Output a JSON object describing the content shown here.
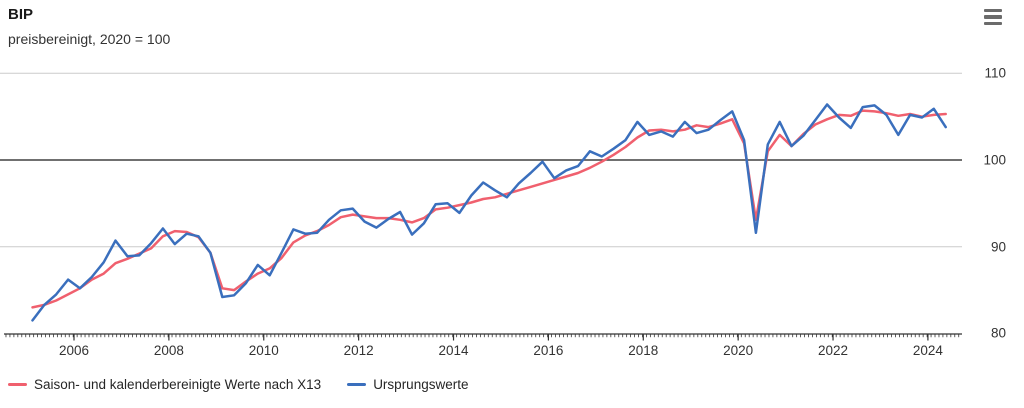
{
  "header": {
    "title": "BIP",
    "subtitle": "preisbereinigt, 2020 = 100"
  },
  "menu": {
    "icon": "hamburger-icon",
    "color": "#6b6b6b"
  },
  "colors": {
    "adjusted_line": "#f0606e",
    "original_line": "#3a6fbd",
    "gridline": "#cccccc",
    "baseline": "#404040",
    "axis": "#333333",
    "text": "#333333"
  },
  "chart_data": {
    "type": "line",
    "title": "BIP",
    "subtitle": "preisbereinigt, 2020 = 100",
    "x_unit": "quarter",
    "x_first_point": "2005-Q1",
    "x_last_point": "2024-Q2",
    "x_tick_labels": [
      "2006",
      "2008",
      "2010",
      "2012",
      "2014",
      "2016",
      "2018",
      "2020",
      "2022",
      "2024"
    ],
    "y_ticks": [
      110,
      100,
      90,
      80
    ],
    "ylim": [
      80,
      110
    ],
    "baseline_value": 100,
    "grid": "horizontal",
    "legend_position": "bottom-left",
    "series": [
      {
        "name": "Saison- und kalenderbereinigte Werte nach X13",
        "color": "#f0606e",
        "values": [
          83.0,
          83.3,
          83.8,
          84.5,
          85.2,
          86.2,
          86.9,
          88.1,
          88.6,
          89.2,
          89.8,
          91.2,
          91.8,
          91.7,
          91.1,
          89.3,
          85.2,
          85.0,
          86.0,
          86.9,
          87.5,
          88.7,
          90.5,
          91.3,
          91.8,
          92.5,
          93.4,
          93.7,
          93.5,
          93.3,
          93.3,
          93.1,
          92.8,
          93.3,
          94.3,
          94.5,
          94.8,
          95.1,
          95.5,
          95.7,
          96.1,
          96.5,
          96.9,
          97.3,
          97.7,
          98.1,
          98.5,
          99.1,
          99.8,
          100.6,
          101.5,
          102.6,
          103.4,
          103.5,
          103.3,
          103.5,
          104.0,
          103.8,
          104.2,
          104.7,
          101.9,
          93.1,
          101.0,
          102.9,
          101.6,
          103.0,
          104.1,
          104.7,
          105.2,
          105.1,
          105.7,
          105.6,
          105.4,
          105.1,
          105.3,
          105.0,
          105.2,
          105.3
        ]
      },
      {
        "name": "Ursprungswerte",
        "color": "#3a6fbd",
        "values": [
          81.5,
          83.3,
          84.5,
          86.2,
          85.2,
          86.5,
          88.2,
          90.7,
          88.9,
          89.0,
          90.4,
          92.1,
          90.3,
          91.5,
          91.2,
          89.3,
          84.2,
          84.4,
          85.8,
          87.9,
          86.7,
          89.3,
          92.0,
          91.5,
          91.6,
          93.1,
          94.2,
          94.4,
          92.9,
          92.2,
          93.2,
          94.0,
          91.4,
          92.7,
          94.9,
          95.0,
          93.9,
          95.9,
          97.4,
          96.5,
          95.7,
          97.3,
          98.5,
          99.8,
          97.9,
          98.8,
          99.3,
          101.0,
          100.4,
          101.3,
          102.3,
          104.4,
          102.9,
          103.3,
          102.7,
          104.4,
          103.1,
          103.5,
          104.6,
          105.6,
          102.3,
          91.6,
          101.8,
          104.4,
          101.6,
          102.8,
          104.6,
          106.4,
          104.9,
          103.7,
          106.1,
          106.3,
          105.2,
          102.9,
          105.2,
          104.9,
          105.9,
          103.8
        ]
      }
    ]
  }
}
